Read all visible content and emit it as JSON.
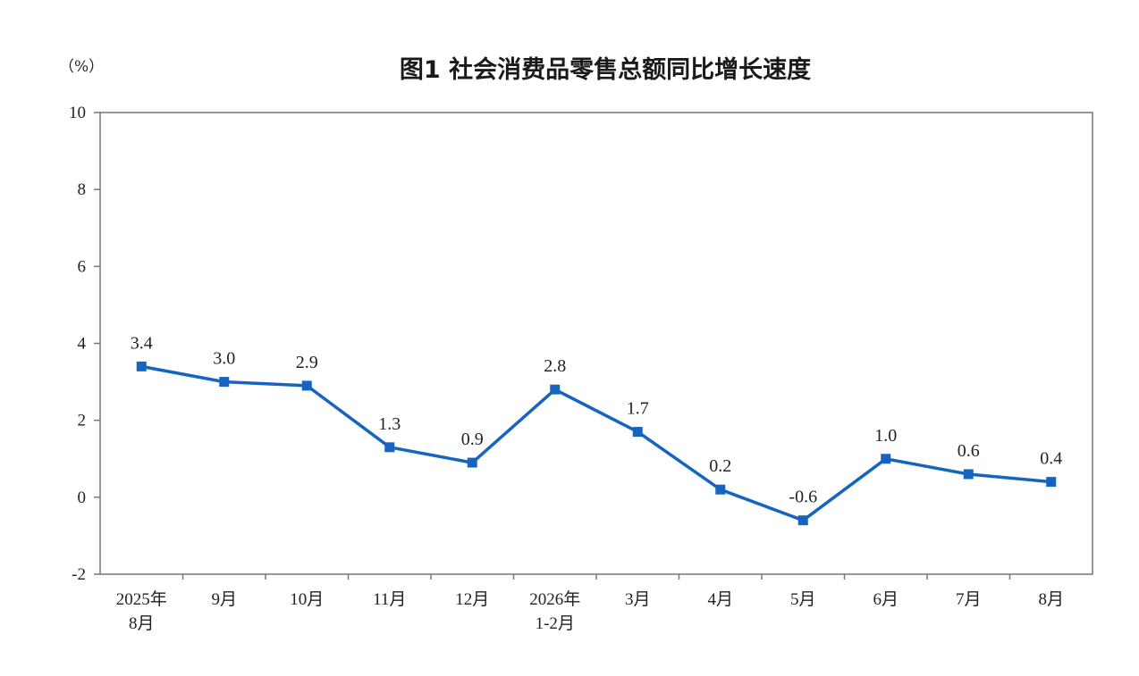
{
  "chart_data": {
    "type": "line",
    "title": "图1 社会消费品零售总额同比增长速度",
    "unit_label": "（%）",
    "categories": [
      [
        "2025年",
        "8月"
      ],
      [
        "9月"
      ],
      [
        "10月"
      ],
      [
        "11月"
      ],
      [
        "12月"
      ],
      [
        "2026年",
        "1-2月"
      ],
      [
        "3月"
      ],
      [
        "4月"
      ],
      [
        "5月"
      ],
      [
        "6月"
      ],
      [
        "7月"
      ],
      [
        "8月"
      ]
    ],
    "series": [
      {
        "values": [
          3.4,
          3.0,
          2.9,
          1.3,
          0.9,
          2.8,
          1.7,
          0.2,
          -0.6,
          1.0,
          0.6,
          0.4
        ],
        "labels": [
          "3.4",
          "3.0",
          "2.9",
          "1.3",
          "0.9",
          "2.8",
          "1.7",
          "0.2",
          "-0.6",
          "1.0",
          "0.6",
          "0.4"
        ],
        "color": "#1565c0"
      }
    ],
    "ylim": [
      -2,
      10
    ],
    "yticks": [
      -2,
      0,
      2,
      4,
      6,
      8,
      10
    ],
    "grid": false,
    "legend": "none",
    "axis_color": "#777777"
  }
}
